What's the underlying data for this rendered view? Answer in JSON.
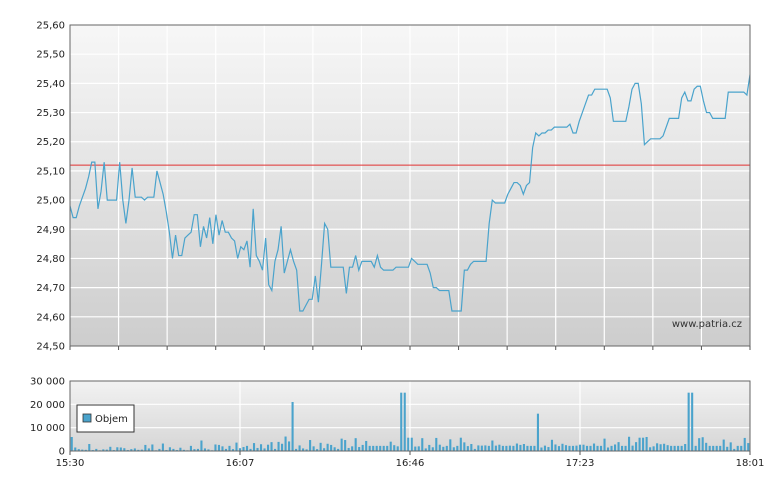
{
  "chart_data": [
    {
      "type": "line",
      "watermark": "www.patria.cz",
      "ylim": [
        24.5,
        25.6
      ],
      "y_ticks": [
        "24,50",
        "24,60",
        "24,70",
        "24,80",
        "24,90",
        "25,00",
        "25,10",
        "25,20",
        "25,30",
        "25,40",
        "25,50",
        "25,60"
      ],
      "reference_line": 25.12,
      "colors": {
        "line": "#4aa3cc",
        "reference": "#e03030"
      },
      "grid": true,
      "series": [
        {
          "values": [
            24.98,
            24.94,
            24.94,
            24.98,
            25.01,
            25.04,
            25.08,
            25.13,
            25.13,
            24.97,
            25.03,
            25.13,
            25.0,
            25.0,
            25.0,
            25.0,
            25.13,
            25.0,
            24.92,
            25.0,
            25.11,
            25.01,
            25.01,
            25.01,
            25.0,
            25.01,
            25.01,
            25.01,
            25.1,
            25.06,
            25.02,
            24.96,
            24.89,
            24.8,
            24.88,
            24.81,
            24.81,
            24.87,
            24.88,
            24.89,
            24.95,
            24.95,
            24.84,
            24.91,
            24.87,
            24.94,
            24.85,
            24.95,
            24.88,
            24.93,
            24.89,
            24.89,
            24.87,
            24.86,
            24.8,
            24.84,
            24.83,
            24.86,
            24.77,
            24.97,
            24.81,
            24.79,
            24.76,
            24.87,
            24.71,
            24.69,
            24.79,
            24.83,
            24.91,
            24.75,
            24.79,
            24.83,
            24.79,
            24.76,
            24.62,
            24.62,
            24.64,
            24.66,
            24.66,
            24.74,
            24.65,
            24.78,
            24.92,
            24.9,
            24.77,
            24.77,
            24.77,
            24.77,
            24.77,
            24.68,
            24.77,
            24.77,
            24.81,
            24.76,
            24.79,
            24.79,
            24.79,
            24.79,
            24.77,
            24.81,
            24.77,
            24.76,
            24.76,
            24.76,
            24.76,
            24.77,
            24.77,
            24.77,
            24.77,
            24.77,
            24.8,
            24.79,
            24.78,
            24.78,
            24.78,
            24.78,
            24.75,
            24.7,
            24.7,
            24.69,
            24.69,
            24.69,
            24.69,
            24.62,
            24.62,
            24.62,
            24.62,
            24.76,
            24.76,
            24.78,
            24.79,
            24.79,
            24.79,
            24.79,
            24.79,
            24.92,
            25.0,
            24.99,
            24.99,
            24.99,
            24.99,
            25.02,
            25.04,
            25.06,
            25.06,
            25.05,
            25.02,
            25.05,
            25.06,
            25.18,
            25.23,
            25.22,
            25.23,
            25.23,
            25.24,
            25.24,
            25.25,
            25.25,
            25.25,
            25.25,
            25.25,
            25.26,
            25.23,
            25.23,
            25.27,
            25.3,
            25.33,
            25.36,
            25.36,
            25.38,
            25.38,
            25.38,
            25.38,
            25.38,
            25.35,
            25.27,
            25.27,
            25.27,
            25.27,
            25.27,
            25.32,
            25.38,
            25.4,
            25.4,
            25.33,
            25.19,
            25.2,
            25.21,
            25.21,
            25.21,
            25.21,
            25.22,
            25.25,
            25.28,
            25.28,
            25.28,
            25.28,
            25.35,
            25.37,
            25.34,
            25.34,
            25.38,
            25.39,
            25.39,
            25.34,
            25.3,
            25.3,
            25.28,
            25.28,
            25.28,
            25.28,
            25.28,
            25.37,
            25.37,
            25.37,
            25.37,
            25.37,
            25.37,
            25.36,
            25.43
          ]
        }
      ]
    },
    {
      "type": "bar",
      "ylim": [
        0,
        30000
      ],
      "y_ticks": [
        "0",
        "10 000",
        "20 000",
        "30 000"
      ],
      "x_ticks": [
        "15:30",
        "16:07",
        "16:46",
        "17:23",
        "18:01"
      ],
      "legend": {
        "label": "Objem",
        "placement": "top-left"
      },
      "colors": {
        "bar": "#4aa3cc"
      },
      "grid": true,
      "series": [
        {
          "name": "Objem",
          "values": [
            6000,
            1500,
            800,
            600,
            500,
            3000,
            400,
            900,
            300,
            700,
            600,
            1800,
            400,
            1600,
            1500,
            1200,
            400,
            800,
            1100,
            500,
            600,
            2600,
            1100,
            2800,
            300,
            900,
            3200,
            400,
            1600,
            900,
            400,
            1400,
            500,
            300,
            2200,
            800,
            900,
            4500,
            1100,
            700,
            300,
            2800,
            2600,
            2000,
            900,
            2200,
            800,
            3600,
            1200,
            1700,
            2200,
            900,
            3400,
            1300,
            2900,
            1100,
            2700,
            3800,
            900,
            3900,
            3100,
            6200,
            4100,
            21000,
            900,
            2400,
            1100,
            700,
            4700,
            2000,
            800,
            3500,
            1200,
            3100,
            2600,
            1600,
            900,
            5300,
            4700,
            1300,
            2000,
            5500,
            1700,
            2600,
            4300,
            2200,
            2200,
            2200,
            2200,
            2200,
            2200,
            4000,
            2500,
            2000,
            25000,
            25000,
            5700,
            5700,
            1900,
            2000,
            5500,
            1100,
            2600,
            1600,
            5600,
            2700,
            1800,
            2200,
            5000,
            1600,
            2200,
            5700,
            3700,
            2100,
            3000,
            900,
            2400,
            2300,
            2400,
            2200,
            4500,
            2300,
            2700,
            2200,
            2200,
            2300,
            2200,
            3200,
            2600,
            3000,
            2200,
            2200,
            2200,
            16000,
            1500,
            2300,
            1700,
            4800,
            2800,
            2100,
            3100,
            2500,
            2200,
            2200,
            2300,
            2700,
            2700,
            2200,
            2200,
            3200,
            2200,
            2200,
            5300,
            1500,
            2200,
            2800,
            3800,
            2200,
            2200,
            6100,
            2300,
            3800,
            5700,
            5700,
            6000,
            1600,
            2000,
            3300,
            2900,
            3100,
            2500,
            2200,
            2200,
            2200,
            2200,
            3000,
            25000,
            25000,
            2200,
            5500,
            5900,
            3500,
            2200,
            2200,
            2200,
            2200,
            4900,
            1800,
            3700,
            900,
            2200,
            2200,
            5600,
            3400
          ]
        }
      ]
    }
  ]
}
